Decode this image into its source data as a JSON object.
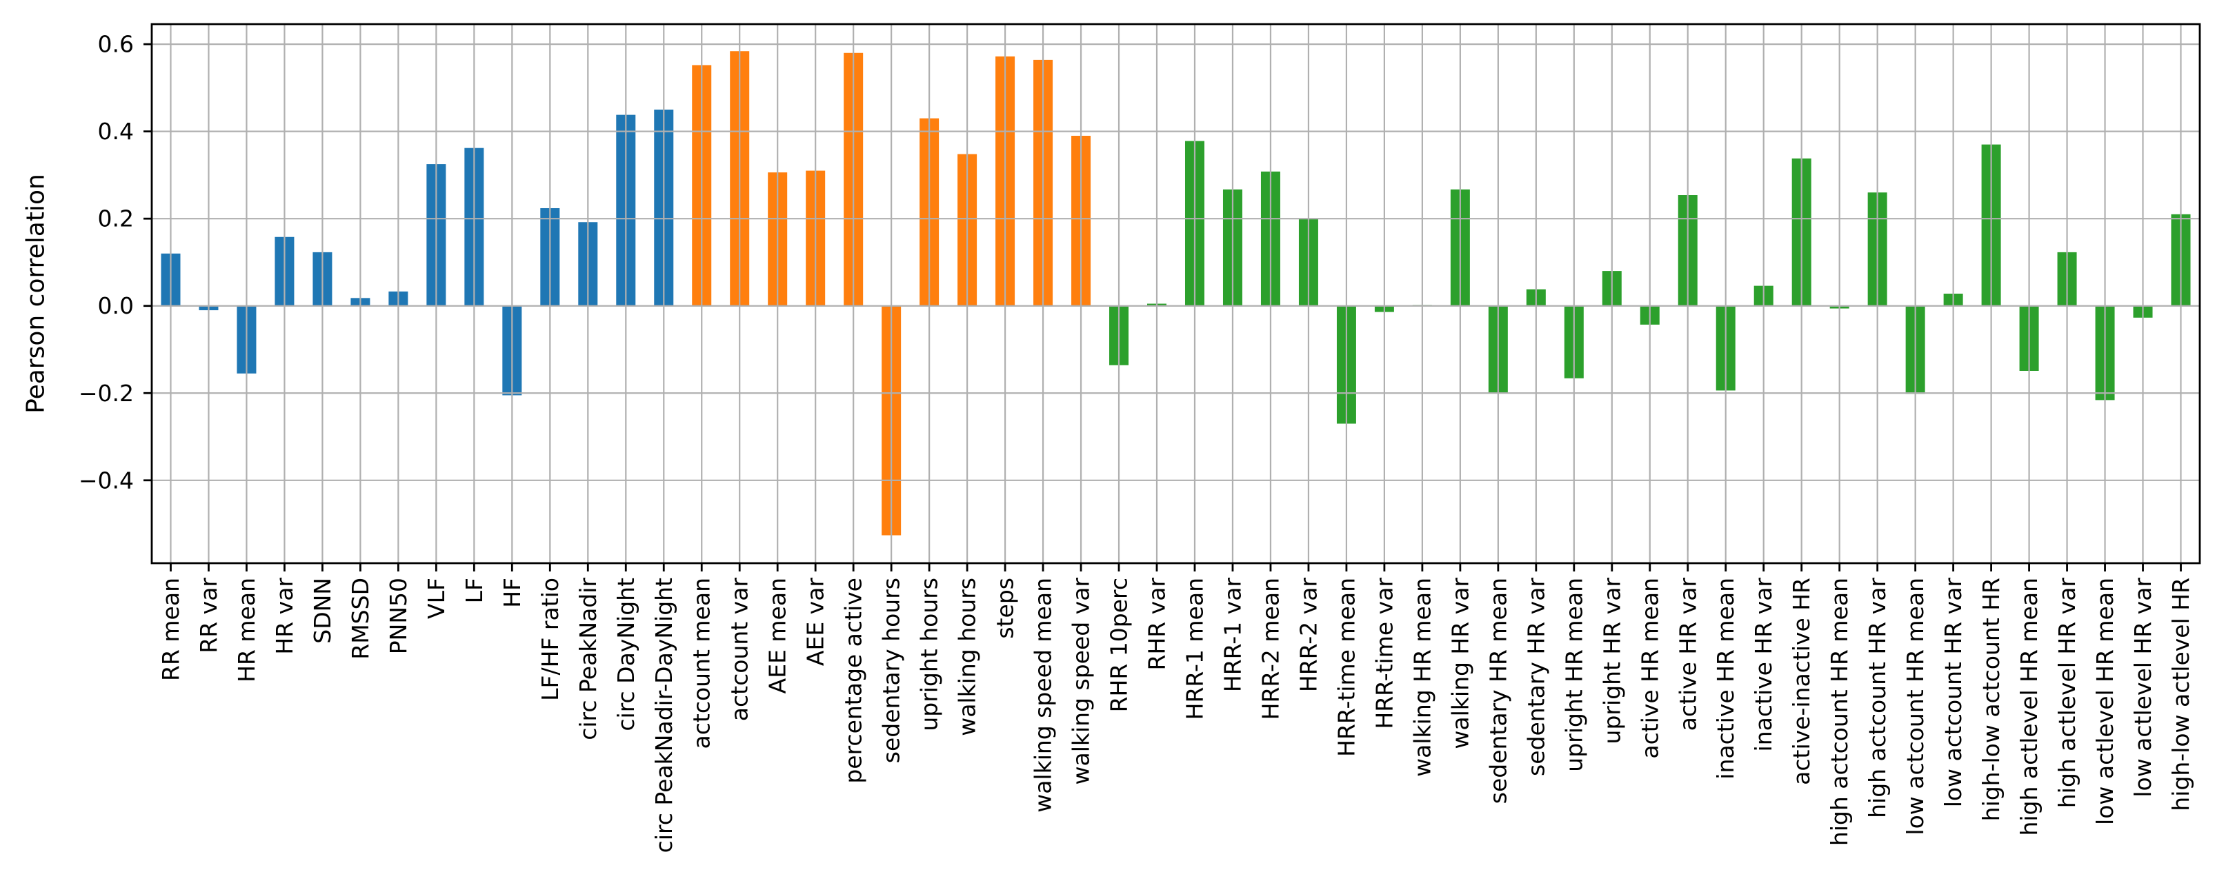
{
  "chart_data": {
    "type": "bar",
    "title": "",
    "xlabel": "",
    "ylabel": "Pearson correlation",
    "ylim": [
      -0.59,
      0.646
    ],
    "yticks": [
      0.6,
      0.4,
      0.2,
      0.0,
      -0.2,
      -0.4
    ],
    "ytick_labels": [
      "0.6",
      "0.4",
      "0.2",
      "0.0",
      "−0.2",
      "−0.4"
    ],
    "grid": true,
    "grid_color": "#b0b0b0",
    "grid_above_bars": true,
    "legend_position": "none",
    "background_color": "#ffffff",
    "spine_color": "#000000",
    "categories": [
      "RR mean",
      "RR var",
      "HR mean",
      "HR var",
      "SDNN",
      "RMSSD",
      "PNN50",
      "VLF",
      "LF",
      "HF",
      "LF/HF ratio",
      "circ PeakNadir",
      "circ DayNight",
      "circ PeakNadir-DayNight",
      "actcount mean",
      "actcount var",
      "AEE mean",
      "AEE var",
      "percentage active",
      "sedentary hours",
      "upright hours",
      "walking hours",
      "steps",
      "walking speed mean",
      "walking speed var",
      "RHR 10perc",
      "RHR var",
      "HRR-1 mean",
      "HRR-1 var",
      "HRR-2 mean",
      "HRR-2 var",
      "HRR-time mean",
      "HRR-time var",
      "walking HR mean",
      "walking HR var",
      "sedentary HR mean",
      "sedentary HR var",
      "upright HR mean",
      "upright HR var",
      "active HR mean",
      "active HR var",
      "inactive HR mean",
      "inactive HR var",
      "active-inactive HR",
      "high actcount HR mean",
      "high actcount HR var",
      "low actcount HR mean",
      "low actcount HR var",
      "high-low actcount HR",
      "high actlevel HR mean",
      "high actlevel HR var",
      "low actlevel HR mean",
      "low actlevel HR var",
      "high-low actlevel HR"
    ],
    "values": [
      0.12,
      -0.01,
      -0.155,
      0.158,
      0.123,
      0.018,
      0.033,
      0.325,
      0.362,
      -0.205,
      0.224,
      0.192,
      0.438,
      0.45,
      0.552,
      0.584,
      0.306,
      0.31,
      0.58,
      -0.526,
      0.43,
      0.348,
      0.572,
      0.564,
      0.39,
      -0.136,
      0.005,
      0.378,
      0.267,
      0.308,
      0.2,
      -0.27,
      -0.014,
      0.002,
      0.267,
      -0.199,
      0.038,
      -0.166,
      0.08,
      -0.043,
      0.254,
      -0.194,
      0.046,
      0.338,
      -0.006,
      0.26,
      -0.202,
      0.028,
      0.37,
      -0.149,
      0.123,
      -0.216,
      -0.027,
      0.21
    ],
    "groups": [
      {
        "name": "blue-group",
        "color": "#1f77b4",
        "start": 0,
        "count": 14
      },
      {
        "name": "orange-group",
        "color": "#ff7f0e",
        "start": 14,
        "count": 11
      },
      {
        "name": "green-group",
        "color": "#2ca02c",
        "start": 25,
        "count": 29
      }
    ]
  }
}
